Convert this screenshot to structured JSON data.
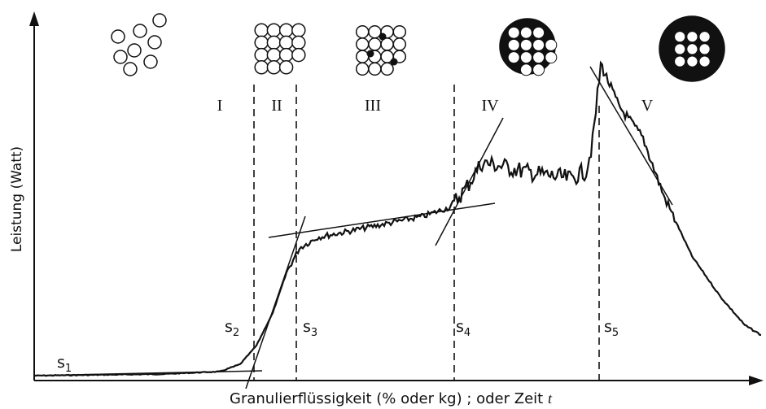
{
  "axes": {
    "y_label": "Leistung (Watt)",
    "x_label": "Granulierflüssigkeit (% oder kg) ; oder Zeit",
    "x_symbol": "t"
  },
  "phases": [
    "I",
    "II",
    "III",
    "IV",
    "V"
  ],
  "points": [
    {
      "letter": "s",
      "index": "1"
    },
    {
      "letter": "s",
      "index": "2"
    },
    {
      "letter": "s",
      "index": "3"
    },
    {
      "letter": "s",
      "index": "4"
    },
    {
      "letter": "s",
      "index": "5"
    }
  ]
}
